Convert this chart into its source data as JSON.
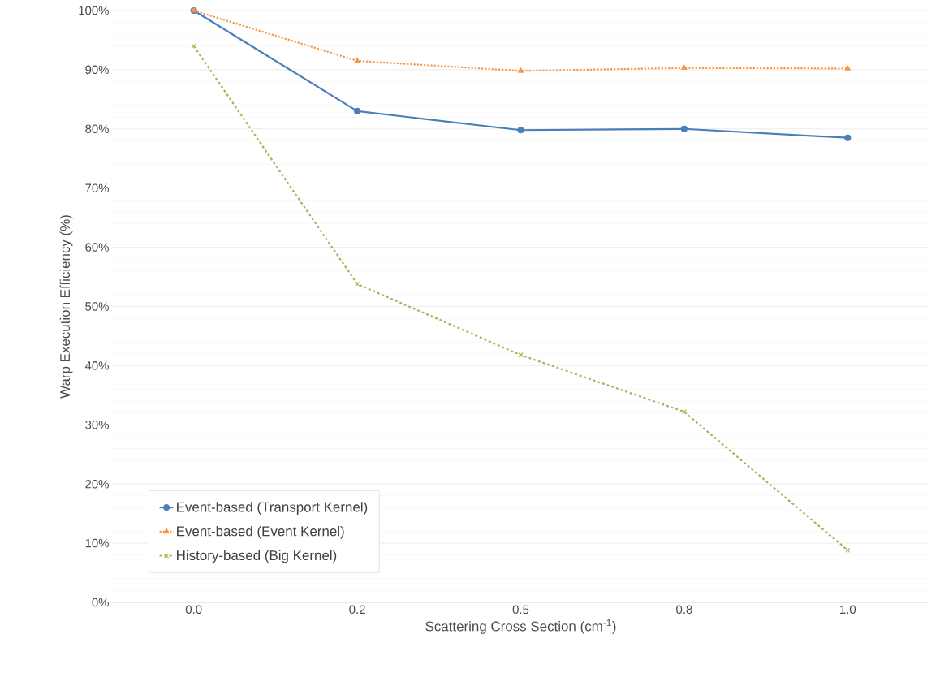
{
  "chart_data": {
    "type": "line",
    "xlabel": "Scattering Cross Section (cm$^{-1}$)",
    "ylabel": "Warp Execution Efficiency (%)",
    "categories": [
      "0.0",
      "0.2",
      "0.5",
      "0.8",
      "1.0"
    ],
    "series": [
      {
        "name": "Event-based (Transport Kernel)",
        "color": "#4a7ebb",
        "marker": "circle",
        "line_style": "solid",
        "values": [
          100,
          83,
          79.8,
          80,
          78.5
        ]
      },
      {
        "name": "Event-based (Event Kernel)",
        "color": "#f79646",
        "marker": "triangle",
        "line_style": "dotted",
        "values": [
          100,
          91.5,
          89.8,
          90.3,
          90.2
        ]
      },
      {
        "name": "History-based (Big Kernel)",
        "color": "#9bbb59",
        "marker": "cross",
        "line_style": "dashed",
        "values": [
          94,
          53.8,
          41.8,
          32.2,
          8.8
        ]
      }
    ],
    "ylim": [
      0,
      100
    ],
    "yticks": [
      {
        "value": 0,
        "label": "0%"
      },
      {
        "value": 10,
        "label": "10%"
      },
      {
        "value": 20,
        "label": "20%"
      },
      {
        "value": 30,
        "label": "30%"
      },
      {
        "value": 40,
        "label": "40%"
      },
      {
        "value": 50,
        "label": "50%"
      },
      {
        "value": 60,
        "label": "60%"
      },
      {
        "value": 70,
        "label": "70%"
      },
      {
        "value": 80,
        "label": "80%"
      },
      {
        "value": 90,
        "label": "90%"
      },
      {
        "value": 100,
        "label": "100%"
      }
    ],
    "grid": "y",
    "legend": "bottom left"
  }
}
